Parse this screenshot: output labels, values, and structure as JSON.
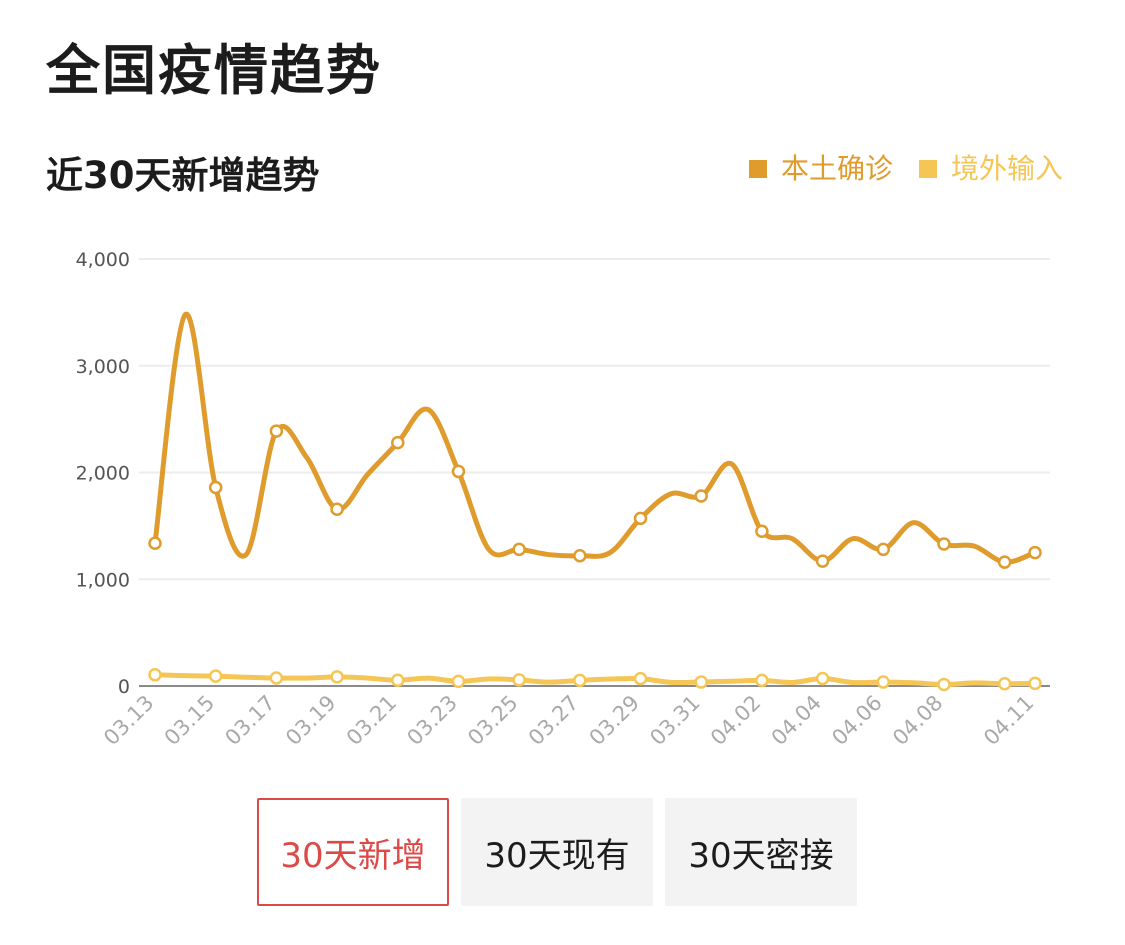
{
  "page": {
    "title": "全国疫情趋势",
    "section_title": "近30天新增趋势"
  },
  "legend": [
    {
      "label": "本土确诊",
      "color": "#e09b2d"
    },
    {
      "label": "境外输入",
      "color": "#f5c656"
    }
  ],
  "tabs": [
    {
      "label": "30天新增",
      "active": true
    },
    {
      "label": "30天现有",
      "active": false
    },
    {
      "label": "30天密接",
      "active": false
    }
  ],
  "chart_data": {
    "type": "line",
    "x": [
      "03.13",
      "03.14",
      "03.15",
      "03.16",
      "03.17",
      "03.18",
      "03.19",
      "03.20",
      "03.21",
      "03.22",
      "03.23",
      "03.24",
      "03.25",
      "03.26",
      "03.27",
      "03.28",
      "03.29",
      "03.30",
      "03.31",
      "04.01",
      "04.02",
      "04.03",
      "04.04",
      "04.05",
      "04.06",
      "04.07",
      "04.08",
      "04.09",
      "04.10",
      "04.11"
    ],
    "x_tick_labels": [
      "03.13",
      "03.15",
      "03.17",
      "03.19",
      "03.21",
      "03.23",
      "03.25",
      "03.27",
      "03.29",
      "03.31",
      "04.02",
      "04.04",
      "04.06",
      "04.08",
      "04.11"
    ],
    "series": [
      {
        "name": "本土确诊",
        "color": "#e09b2d",
        "values": [
          1337,
          3480,
          1860,
          1230,
          2388,
          2140,
          1656,
          1980,
          2280,
          2590,
          2010,
          1280,
          1280,
          1230,
          1220,
          1250,
          1570,
          1800,
          1780,
          2080,
          1450,
          1380,
          1170,
          1380,
          1280,
          1530,
          1330,
          1310,
          1160,
          1250
        ]
      },
      {
        "name": "境外输入",
        "color": "#f5c656",
        "values": [
          105,
          97,
          93,
          82,
          75,
          74,
          86,
          74,
          54,
          74,
          43,
          66,
          57,
          36,
          53,
          65,
          69,
          34,
          37,
          44,
          53,
          33,
          70,
          33,
          37,
          30,
          14,
          29,
          21,
          25
        ]
      }
    ],
    "y_ticks": [
      0,
      1000,
      2000,
      3000,
      4000
    ],
    "y_tick_labels": [
      "0",
      "1,000",
      "2,000",
      "3,000",
      "4,000"
    ],
    "ylim": [
      0,
      4000
    ],
    "grid": true,
    "legend_position": "top-right"
  }
}
